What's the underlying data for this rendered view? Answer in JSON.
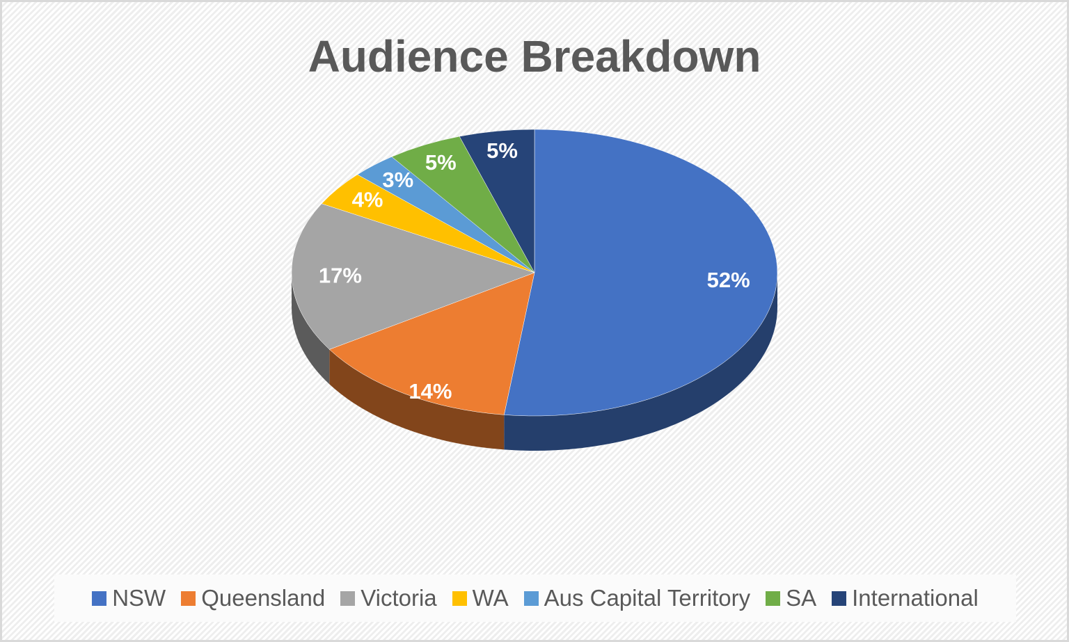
{
  "chart_data": {
    "type": "pie",
    "title": "Audience Breakdown",
    "categories": [
      "NSW",
      "Queensland",
      "Victoria",
      "WA",
      "Aus Capital Territory",
      "SA",
      "International"
    ],
    "values": [
      52,
      14,
      17,
      4,
      3,
      5,
      5
    ],
    "labels": [
      "52%",
      "14%",
      "17%",
      "4%",
      "3%",
      "5%",
      "5%"
    ],
    "colors": [
      "#4472c4",
      "#ed7d31",
      "#a5a5a5",
      "#ffc000",
      "#5b9bd5",
      "#70ad47",
      "#264478"
    ],
    "legend_position": "bottom",
    "style": "3d"
  }
}
